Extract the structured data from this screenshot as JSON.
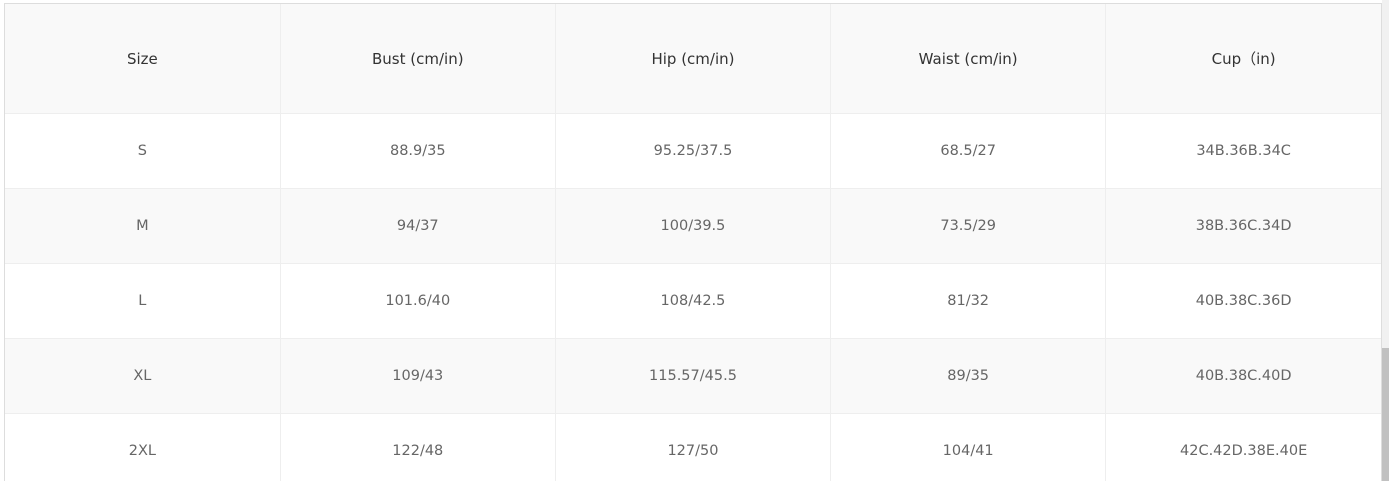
{
  "table": {
    "headers": [
      "Size",
      "Bust (cm/in)",
      "Hip (cm/in)",
      "Waist (cm/in)",
      "Cup（in)"
    ],
    "rows": [
      [
        "S",
        "88.9/35",
        "95.25/37.5",
        "68.5/27",
        "34B.36B.34C"
      ],
      [
        "M",
        "94/37",
        "100/39.5",
        "73.5/29",
        "38B.36C.34D"
      ],
      [
        "L",
        "101.6/40",
        "108/42.5",
        "81/32",
        "40B.38C.36D"
      ],
      [
        "XL",
        "109/43",
        "115.57/45.5",
        "89/35",
        "40B.38C.40D"
      ],
      [
        "2XL",
        "122/48",
        "127/50",
        "104/41",
        "42C.42D.38E.40E"
      ]
    ]
  },
  "scrollbar": {
    "position_percent": 100
  }
}
